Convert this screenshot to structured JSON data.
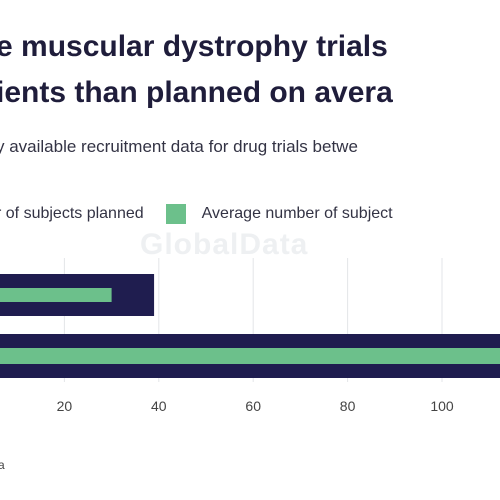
{
  "title_line1": "e muscular dystrophy trials",
  "title_line2": "ients than planned on avera",
  "subtitle": "y available recruitment data for drug trials betwe",
  "legend": [
    {
      "label": "r of subjects planned",
      "color": "#1f1d4f"
    },
    {
      "label": "Average number of subject",
      "color": "#6cc08b"
    }
  ],
  "watermark": "GlobalData",
  "source_text": "a",
  "chart_data": {
    "type": "bar",
    "orientation": "horizontal",
    "categories": [
      "",
      ""
    ],
    "series": [
      {
        "name": "r of subjects planned",
        "color": "#1f1d4f",
        "values": [
          39,
          125
        ]
      },
      {
        "name": "Average number of subject",
        "color": "#6cc08b",
        "values": [
          30,
          125
        ]
      }
    ],
    "xlim": [
      0,
      125
    ],
    "x_ticks": [
      20,
      40,
      60,
      80,
      100
    ],
    "grid": true,
    "legend_position": "top"
  }
}
